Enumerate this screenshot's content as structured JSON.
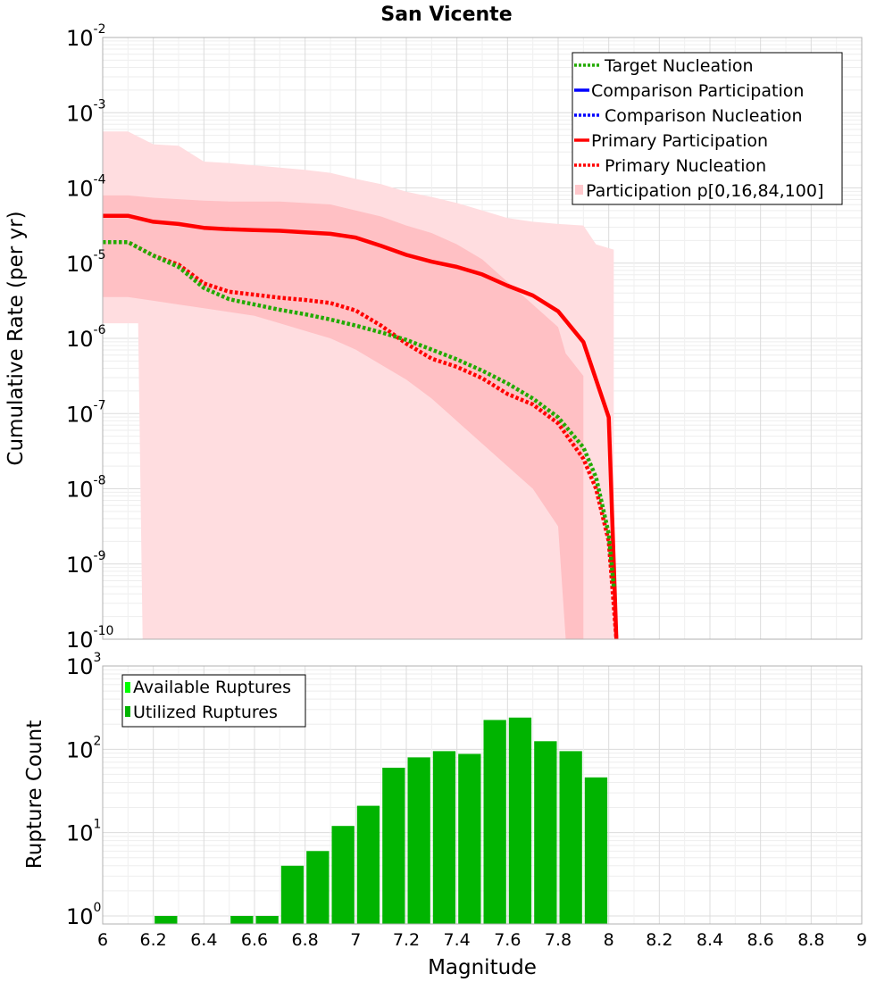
{
  "chart_data": [
    {
      "type": "line",
      "title": "San Vicente",
      "xlabel": "Magnitude",
      "ylabel": "Cumulative Rate (per yr)",
      "xlim": [
        6,
        9
      ],
      "ylim_log10": [
        -10,
        -2
      ],
      "yscale": "log",
      "grid": true,
      "y_tick_labels": [
        {
          "base": "10",
          "exp": "-10",
          "log10": -10
        },
        {
          "base": "10",
          "exp": "-9",
          "log10": -9
        },
        {
          "base": "10",
          "exp": "-8",
          "log10": -8
        },
        {
          "base": "10",
          "exp": "-7",
          "log10": -7
        },
        {
          "base": "10",
          "exp": "-6",
          "log10": -6
        },
        {
          "base": "10",
          "exp": "-5",
          "log10": -5
        },
        {
          "base": "10",
          "exp": "-4",
          "log10": -4
        },
        {
          "base": "10",
          "exp": "-3",
          "log10": -3
        },
        {
          "base": "10",
          "exp": "-2",
          "log10": -2
        }
      ],
      "legend_position": "top-right",
      "legend": [
        {
          "label": "Target Nucleation",
          "color": "#22aa00",
          "style": "dotted"
        },
        {
          "label": "Comparison Participation",
          "color": "#0000ff",
          "style": "solid"
        },
        {
          "label": "Comparison Nucleation",
          "color": "#0000ff",
          "style": "dotted"
        },
        {
          "label": "Primary Participation",
          "color": "#ff0000",
          "style": "solid"
        },
        {
          "label": "Primary Nucleation",
          "color": "#ff0000",
          "style": "dotted"
        },
        {
          "label": "Participation p[0,16,84,100]",
          "color": "#ffc8cc",
          "style": "box"
        }
      ],
      "bands": [
        {
          "name": "p0-p100",
          "color": "#ffdde0",
          "x": [
            6.0,
            6.1,
            6.2,
            6.3,
            6.4,
            6.5,
            6.6,
            6.7,
            6.8,
            6.9,
            7.0,
            7.1,
            7.2,
            7.3,
            7.4,
            7.5,
            7.6,
            7.7,
            7.8,
            7.9,
            7.95,
            8.02
          ],
          "upper": [
            -3.25,
            -3.25,
            -3.42,
            -3.44,
            -3.65,
            -3.67,
            -3.7,
            -3.73,
            -3.76,
            -3.8,
            -3.88,
            -3.95,
            -4.05,
            -4.12,
            -4.2,
            -4.3,
            -4.4,
            -4.45,
            -4.48,
            -4.5,
            -4.75,
            -4.82
          ],
          "lower": [
            -5.8,
            -5.8,
            -10.0,
            -10.0,
            -10.0,
            -10.0,
            -10.0,
            -10.0,
            -10.0,
            -10.0,
            -10.0,
            -10.0,
            -10.0,
            -10.0,
            -10.0,
            -10.0,
            -10.0,
            -10.0,
            -10.0,
            -10.0,
            -10.0,
            -10.0
          ],
          "lower_x_break": 6.14
        },
        {
          "name": "p16-p84",
          "color": "#ffc0c4",
          "x": [
            6.0,
            6.1,
            6.2,
            6.3,
            6.4,
            6.5,
            6.6,
            6.7,
            6.8,
            6.9,
            7.0,
            7.1,
            7.2,
            7.3,
            7.4,
            7.5,
            7.6,
            7.7,
            7.8,
            7.83,
            7.9
          ],
          "upper": [
            -4.1,
            -4.1,
            -4.13,
            -4.15,
            -4.17,
            -4.18,
            -4.18,
            -4.18,
            -4.2,
            -4.22,
            -4.3,
            -4.38,
            -4.5,
            -4.6,
            -4.75,
            -4.95,
            -5.25,
            -5.55,
            -5.85,
            -6.2,
            -6.5
          ],
          "lower": [
            -5.45,
            -5.45,
            -5.5,
            -5.55,
            -5.6,
            -5.65,
            -5.7,
            -5.8,
            -5.9,
            -6.0,
            -6.15,
            -6.35,
            -6.55,
            -6.8,
            -7.1,
            -7.4,
            -7.7,
            -8.0,
            -8.5,
            -10.0,
            -10.0
          ]
        }
      ],
      "series": [
        {
          "name": "Primary Participation",
          "color": "#ff0000",
          "style": "solid",
          "x": [
            6.0,
            6.1,
            6.2,
            6.3,
            6.4,
            6.5,
            6.6,
            6.7,
            6.8,
            6.9,
            7.0,
            7.1,
            7.2,
            7.3,
            7.4,
            7.5,
            7.6,
            7.7,
            7.8,
            7.9,
            8.0,
            8.03
          ],
          "log10y": [
            -4.37,
            -4.37,
            -4.45,
            -4.48,
            -4.53,
            -4.55,
            -4.56,
            -4.57,
            -4.59,
            -4.61,
            -4.66,
            -4.77,
            -4.89,
            -4.98,
            -5.05,
            -5.15,
            -5.3,
            -5.43,
            -5.64,
            -6.05,
            -7.05,
            -10.0
          ]
        },
        {
          "name": "Primary Nucleation",
          "color": "#ff0000",
          "style": "dotted",
          "x": [
            6.0,
            6.1,
            6.2,
            6.3,
            6.4,
            6.5,
            6.6,
            6.7,
            6.8,
            6.9,
            7.0,
            7.1,
            7.2,
            7.3,
            7.4,
            7.5,
            7.6,
            7.7,
            7.8,
            7.9,
            7.95,
            8.0,
            8.03
          ],
          "log10y": [
            -4.72,
            -4.72,
            -4.9,
            -5.02,
            -5.27,
            -5.38,
            -5.42,
            -5.46,
            -5.49,
            -5.53,
            -5.63,
            -5.83,
            -6.07,
            -6.27,
            -6.38,
            -6.53,
            -6.74,
            -6.88,
            -7.13,
            -7.6,
            -8.0,
            -8.7,
            -10.0
          ]
        },
        {
          "name": "Target Nucleation",
          "color": "#22aa00",
          "style": "dotted",
          "x": [
            6.0,
            6.1,
            6.2,
            6.3,
            6.4,
            6.5,
            6.6,
            6.7,
            6.8,
            6.9,
            7.0,
            7.1,
            7.2,
            7.3,
            7.4,
            7.5,
            7.6,
            7.7,
            7.8,
            7.9,
            7.95,
            8.0,
            8.02
          ],
          "log10y": [
            -4.72,
            -4.72,
            -4.9,
            -5.05,
            -5.33,
            -5.48,
            -5.55,
            -5.62,
            -5.68,
            -5.75,
            -5.83,
            -5.92,
            -6.02,
            -6.15,
            -6.28,
            -6.43,
            -6.6,
            -6.8,
            -7.05,
            -7.45,
            -7.85,
            -8.6,
            -9.3
          ]
        },
        {
          "name": "Comparison Participation",
          "color": "#0000ff",
          "style": "solid",
          "x": [],
          "log10y": []
        },
        {
          "name": "Comparison Nucleation",
          "color": "#0000ff",
          "style": "dotted",
          "x": [],
          "log10y": []
        }
      ]
    },
    {
      "type": "bar",
      "title": "",
      "xlabel": "Magnitude",
      "ylabel": "Rupture Count",
      "xlim": [
        6,
        9
      ],
      "yscale": "log",
      "ylim": [
        0.8,
        1000
      ],
      "grid": true,
      "y_tick_labels": [
        {
          "base": "10",
          "exp": "0",
          "value": 1
        },
        {
          "base": "10",
          "exp": "1",
          "value": 10
        },
        {
          "base": "10",
          "exp": "2",
          "value": 100
        },
        {
          "base": "10",
          "exp": "3",
          "value": 1000
        }
      ],
      "x_tick_labels": [
        "6",
        "6.2",
        "6.4",
        "6.6",
        "6.8",
        "7",
        "7.2",
        "7.4",
        "7.6",
        "7.8",
        "8",
        "8.2",
        "8.4",
        "8.6",
        "8.8",
        "9"
      ],
      "legend_position": "top-left",
      "legend": [
        {
          "label": "Available Ruptures",
          "color": "#00ff00"
        },
        {
          "label": "Utilized Ruptures",
          "color": "#00b400"
        }
      ],
      "bin_width": 0.1,
      "series": [
        {
          "name": "Utilized Ruptures",
          "color": "#00b400",
          "x": [
            6.25,
            6.55,
            6.65,
            6.75,
            6.85,
            6.95,
            7.05,
            7.15,
            7.25,
            7.35,
            7.45,
            7.55,
            7.65,
            7.75,
            7.85,
            7.95
          ],
          "values": [
            1,
            1,
            1,
            4,
            6,
            12,
            21,
            60,
            80,
            95,
            88,
            225,
            240,
            125,
            95,
            46
          ]
        }
      ]
    }
  ]
}
